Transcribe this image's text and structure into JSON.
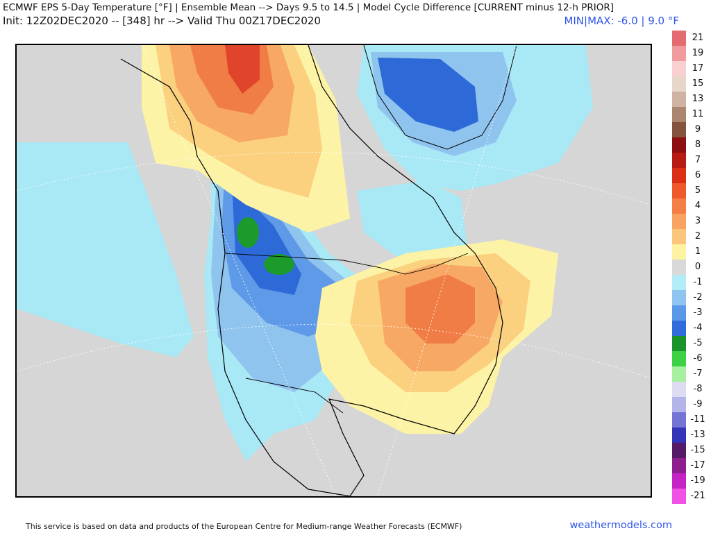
{
  "header": {
    "title_line1": "ECMWF EPS 5-Day Temperature [°F] | Ensemble Mean --> Days 9.5 to 14.5 | Model Cycle Difference [CURRENT minus 12-h PRIOR]",
    "title_line2": "Init: 12Z02DEC2020 -- [348] hr --> Valid Thu 00Z17DEC2020",
    "minmax": "MIN|MAX: -6.0 | 9.0 °F"
  },
  "map": {
    "region": "North America",
    "colors": {
      "no_change": "#d6d6d6",
      "minus_1": "#a9e8f5",
      "minus_2": "#8fc4ef",
      "minus_3": "#5f9ae8",
      "minus_4": "#2d6ad8",
      "minus_5": "#1c9b2c",
      "plus_1": "#fdf3a6",
      "plus_2": "#fbd07f",
      "plus_3": "#f7a865",
      "plus_4": "#f17d46",
      "plus_5": "#e0442a",
      "plus_6": "#c9251c"
    }
  },
  "legend": {
    "items": [
      {
        "label": "21",
        "color": "#e46c70"
      },
      {
        "label": "19",
        "color": "#f09a9e"
      },
      {
        "label": "17",
        "color": "#f9cfd0"
      },
      {
        "label": "15",
        "color": "#e9d6cb"
      },
      {
        "label": "13",
        "color": "#cfb2a4"
      },
      {
        "label": "11",
        "color": "#ac8571"
      },
      {
        "label": "9",
        "color": "#83533e"
      },
      {
        "label": "8",
        "color": "#8e0f0f"
      },
      {
        "label": "7",
        "color": "#b81a14"
      },
      {
        "label": "6",
        "color": "#db3016"
      },
      {
        "label": "5",
        "color": "#ef5a2b"
      },
      {
        "label": "4",
        "color": "#f47f45"
      },
      {
        "label": "3",
        "color": "#f8a361"
      },
      {
        "label": "2",
        "color": "#fbc67c"
      },
      {
        "label": "1",
        "color": "#fdf3a0"
      },
      {
        "label": "0",
        "color": "#d9d9d9"
      },
      {
        "label": "-1",
        "color": "#b2ecf7"
      },
      {
        "label": "-2",
        "color": "#8fc4f0"
      },
      {
        "label": "-3",
        "color": "#5b98e7"
      },
      {
        "label": "-4",
        "color": "#2f6cdc"
      },
      {
        "label": "-5",
        "color": "#19932a"
      },
      {
        "label": "-6",
        "color": "#3dd246"
      },
      {
        "label": "-7",
        "color": "#a6f0a0"
      },
      {
        "label": "-8",
        "color": "#dcdcf2"
      },
      {
        "label": "-9",
        "color": "#b4b4ea"
      },
      {
        "label": "-11",
        "color": "#7474d6"
      },
      {
        "label": "-13",
        "color": "#3434b8"
      },
      {
        "label": "-15",
        "color": "#561a68"
      },
      {
        "label": "-17",
        "color": "#8e1d8e"
      },
      {
        "label": "-19",
        "color": "#c623c6"
      },
      {
        "label": "-21",
        "color": "#f052e6"
      }
    ]
  },
  "footer": {
    "disclaimer": "This service is based on data and products of the European Centre for Medium-range Weather Forecasts (ECMWF)",
    "brand": "weathermodels.com"
  }
}
